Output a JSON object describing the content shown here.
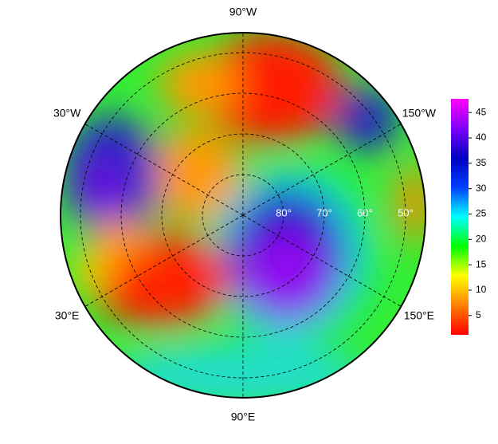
{
  "chart_data": {
    "type": "polar-map",
    "meridians": [
      {
        "value": -90,
        "label": "90°W"
      },
      {
        "value": -30,
        "label": "30°W"
      },
      {
        "value": -150,
        "label": "150°W"
      },
      {
        "value": 30,
        "label": "30°E"
      },
      {
        "value": 150,
        "label": "150°E"
      },
      {
        "value": 90,
        "label": "90°E"
      }
    ],
    "parallels": [
      {
        "value": 80,
        "label": "80°"
      },
      {
        "value": 70,
        "label": "70°"
      },
      {
        "value": 60,
        "label": "60°"
      },
      {
        "value": 50,
        "label": "50°"
      }
    ],
    "colorbar": {
      "ylim": [
        1.2,
        47.7
      ],
      "yticks": [
        5,
        10,
        15,
        20,
        25,
        30,
        35,
        40,
        45
      ],
      "colormap": [
        "#ff0000",
        "#ff8000",
        "#ffff00",
        "#00ff00",
        "#00ffff",
        "#0040ff",
        "#0000c0",
        "#8000ff",
        "#ff00ff"
      ]
    }
  }
}
